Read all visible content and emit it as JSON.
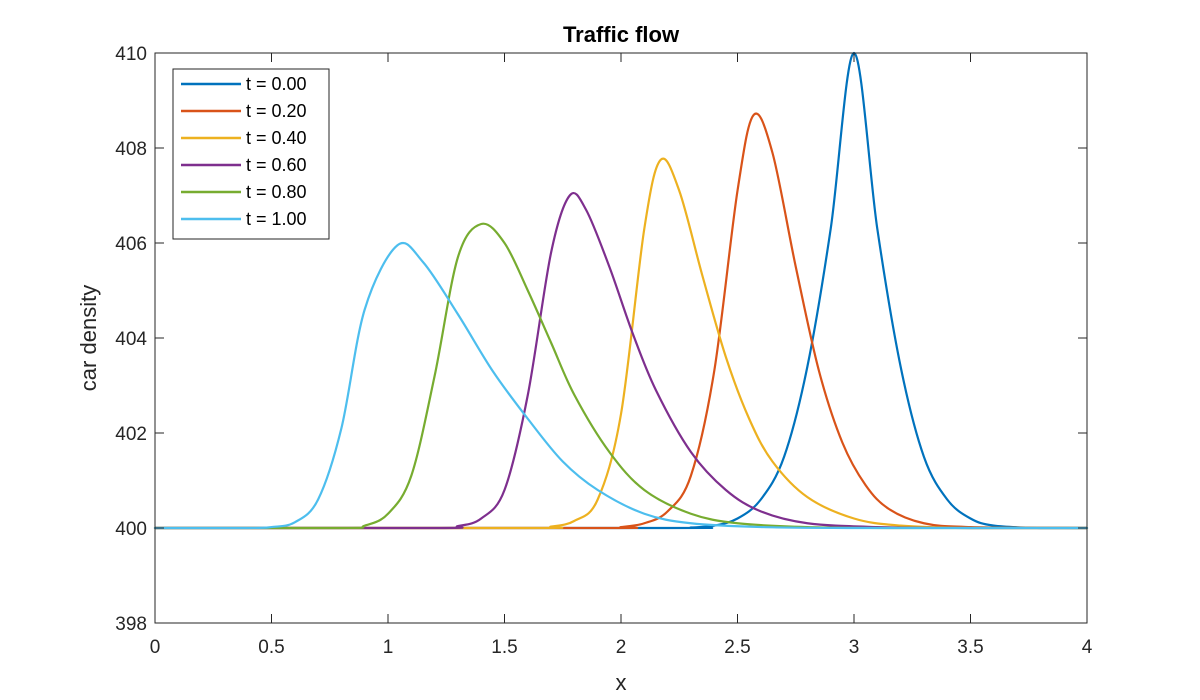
{
  "chart_data": {
    "type": "line",
    "title": "Traffic flow",
    "xlabel": "x",
    "ylabel": "car density",
    "xlim": [
      0,
      4
    ],
    "ylim": [
      398,
      410
    ],
    "xticks": [
      0,
      0.5,
      1,
      1.5,
      2,
      2.5,
      3,
      3.5,
      4
    ],
    "xtick_labels": [
      "0",
      "0.5",
      "1",
      "1.5",
      "2",
      "2.5",
      "3",
      "3.5",
      "4"
    ],
    "yticks": [
      398,
      400,
      402,
      404,
      406,
      408,
      410
    ],
    "ytick_labels": [
      "398",
      "400",
      "402",
      "404",
      "406",
      "408",
      "410"
    ],
    "grid": false,
    "legend_position": "top-left",
    "series": [
      {
        "name": "t = 0.00",
        "color": "#0072BD",
        "x": [
          0,
          2.2,
          2.3,
          2.4,
          2.5,
          2.6,
          2.7,
          2.8,
          2.9,
          3.0,
          3.1,
          3.2,
          3.3,
          3.4,
          3.5,
          3.6,
          3.8,
          4
        ],
        "y": [
          400,
          400,
          400.01,
          400.05,
          400.2,
          400.6,
          401.5,
          403.4,
          406.3,
          410.0,
          406.3,
          403.4,
          401.5,
          400.6,
          400.2,
          400.05,
          400,
          400
        ]
      },
      {
        "name": "t = 0.20",
        "color": "#D95319",
        "x": [
          0,
          1.9,
          2.0,
          2.1,
          2.2,
          2.3,
          2.4,
          2.5,
          2.57,
          2.65,
          2.75,
          2.85,
          2.95,
          3.05,
          3.15,
          3.3,
          3.5,
          4
        ],
        "y": [
          400,
          400,
          400.02,
          400.1,
          400.35,
          401.1,
          403.3,
          407.1,
          408.7,
          407.9,
          405.5,
          403.3,
          401.8,
          400.9,
          400.4,
          400.1,
          400.02,
          400
        ]
      },
      {
        "name": "t = 0.40",
        "color": "#EDB120",
        "x": [
          0,
          1.6,
          1.7,
          1.8,
          1.9,
          2.0,
          2.1,
          2.17,
          2.25,
          2.35,
          2.45,
          2.55,
          2.65,
          2.8,
          3.0,
          3.2,
          3.5,
          4
        ],
        "y": [
          400,
          400,
          400.03,
          400.15,
          400.6,
          402.4,
          406.3,
          407.75,
          407.1,
          405.3,
          403.6,
          402.3,
          401.4,
          400.65,
          400.2,
          400.05,
          400,
          400
        ]
      },
      {
        "name": "t = 0.60",
        "color": "#7E2F8E",
        "x": [
          0,
          1.2,
          1.3,
          1.4,
          1.5,
          1.6,
          1.7,
          1.78,
          1.85,
          1.95,
          2.05,
          2.15,
          2.3,
          2.45,
          2.6,
          2.8,
          3.1,
          3.5,
          4
        ],
        "y": [
          400,
          400,
          400.04,
          400.2,
          400.8,
          402.8,
          405.8,
          407.0,
          406.7,
          405.5,
          404.1,
          402.9,
          401.6,
          400.8,
          400.35,
          400.1,
          400.02,
          400,
          400
        ]
      },
      {
        "name": "t = 0.80",
        "color": "#77AC30",
        "x": [
          0,
          0.8,
          0.9,
          1.0,
          1.1,
          1.2,
          1.3,
          1.4,
          1.5,
          1.6,
          1.7,
          1.8,
          1.95,
          2.1,
          2.3,
          2.5,
          2.8,
          3.2,
          4
        ],
        "y": [
          400,
          400,
          400.05,
          400.3,
          401.1,
          403.2,
          405.7,
          406.4,
          406.0,
          405.0,
          403.9,
          402.8,
          401.6,
          400.8,
          400.3,
          400.1,
          400.02,
          400,
          400
        ]
      },
      {
        "name": "t = 1.00",
        "color": "#4DBEEE",
        "x": [
          0,
          0.4,
          0.5,
          0.6,
          0.7,
          0.8,
          0.9,
          1.04,
          1.15,
          1.3,
          1.45,
          1.6,
          1.75,
          1.9,
          2.1,
          2.3,
          2.6,
          3.0,
          4
        ],
        "y": [
          400,
          400,
          400.02,
          400.12,
          400.6,
          402.1,
          404.6,
          405.95,
          405.6,
          404.5,
          403.3,
          402.3,
          401.4,
          400.8,
          400.3,
          400.1,
          400.02,
          400,
          400
        ]
      }
    ]
  }
}
